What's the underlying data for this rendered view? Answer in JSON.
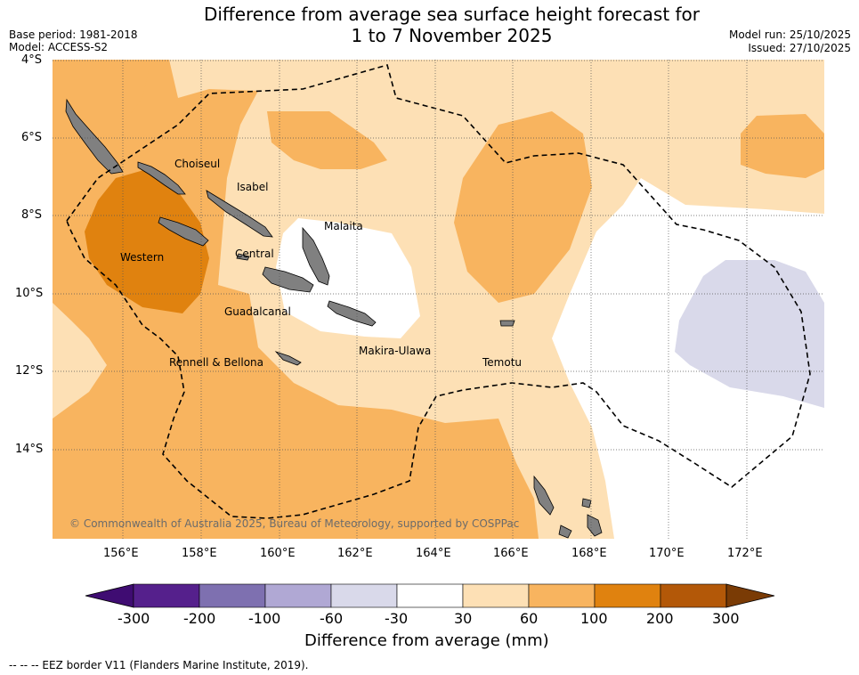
{
  "header": {
    "title_line1": "Difference from average sea surface height forecast for",
    "title_line2": "1 to 7 November 2025",
    "base_period": "Base period: 1981-2018",
    "model": "Model: ACCESS-S2",
    "model_run": "Model run: 25/10/2025",
    "issued": "Issued: 27/10/2025"
  },
  "map": {
    "lat_labels": [
      "4°S",
      "6°S",
      "8°S",
      "10°S",
      "12°S",
      "14°S"
    ],
    "lon_labels": [
      "156°E",
      "158°E",
      "160°E",
      "162°E",
      "164°E",
      "166°E",
      "168°E",
      "170°E",
      "172°E"
    ],
    "province_labels": [
      "Choiseul",
      "Isabel",
      "Malaita",
      "Western",
      "Central",
      "Guadalcanal",
      "Makira-Ulawa",
      "Rennell & Bellona",
      "Temotu"
    ],
    "copyright": "© Commonwealth of Australia 2025, Bureau of Meteorology, supported by COSPPac"
  },
  "colorbar": {
    "ticks": [
      "-300",
      "-200",
      "-100",
      "-60",
      "-30",
      "30",
      "60",
      "100",
      "200",
      "300"
    ],
    "colors": [
      "#3f0c72",
      "#55208c",
      "#7e70b0",
      "#b0a8d4",
      "#d9d9ea",
      "#ffffff",
      "#fde0b5",
      "#f8b45f",
      "#e0820f",
      "#b35808",
      "#7a3b05"
    ],
    "label": "Difference from average (mm)"
  },
  "legend": {
    "eez": "--  --  -- EEZ border V11 (Flanders Marine Institute, 2019)."
  }
}
